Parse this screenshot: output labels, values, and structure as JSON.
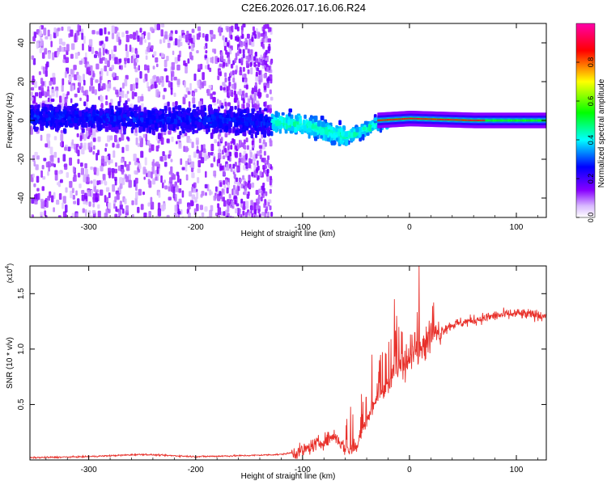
{
  "title": "C2E6.2026.017.16.06.R24",
  "chart_data": [
    {
      "type": "heatmap",
      "name": "spectrogram",
      "xlabel": "Height of straight line (km)",
      "ylabel": "Frequency (Hz)",
      "xlim": [
        -355,
        128
      ],
      "ylim": [
        -50,
        50
      ],
      "xticks": [
        -300,
        -200,
        -100,
        0,
        100
      ],
      "xtick_labels": [
        "-300",
        "-200",
        "-100",
        "0",
        "100"
      ],
      "yticks": [
        -40,
        -20,
        0,
        20,
        40
      ],
      "ytick_labels": [
        "-40",
        "-20",
        "0",
        "20",
        "40"
      ],
      "colorbar": {
        "label": "Normalized spectral amplitude",
        "range": [
          0,
          1
        ],
        "ticks": [
          0.0,
          0.2,
          0.4,
          0.6,
          0.8
        ],
        "tick_labels": [
          "0.0",
          "0.2",
          "0.4",
          "0.6",
          "0.8"
        ],
        "colormap": [
          "#ffffff",
          "#8800ff",
          "#0000ff",
          "#00ffff",
          "#00ff00",
          "#ffff00",
          "#ff0000",
          "#ff00aa"
        ]
      },
      "ridge_center_hz": [
        {
          "x": -355,
          "y": 3
        },
        {
          "x": -250,
          "y": 2
        },
        {
          "x": -150,
          "y": 1
        },
        {
          "x": -100,
          "y": -1
        },
        {
          "x": -75,
          "y": -5
        },
        {
          "x": -60,
          "y": -7
        },
        {
          "x": -45,
          "y": -4
        },
        {
          "x": -30,
          "y": 0
        },
        {
          "x": 0,
          "y": 1
        },
        {
          "x": 60,
          "y": 0
        },
        {
          "x": 128,
          "y": 0
        }
      ]
    },
    {
      "type": "line",
      "name": "snr",
      "xlabel": "Height of straight line (km)",
      "ylabel": "SNR (10 * v/v)",
      "scale_label": "(x10",
      "scale_exponent": "4",
      "xlim": [
        -355,
        128
      ],
      "ylim": [
        0,
        1.75
      ],
      "xticks": [
        -300,
        -200,
        -100,
        0,
        100
      ],
      "xtick_labels": [
        "-300",
        "-200",
        "-100",
        "0",
        "100"
      ],
      "yticks": [
        0.5,
        1.0,
        1.5
      ],
      "ytick_labels": [
        "0.5",
        "1.0",
        "1.5"
      ],
      "color": "#e8302a",
      "series": [
        {
          "name": "SNR",
          "x": [
            -355,
            -300,
            -250,
            -200,
            -150,
            -120,
            -100,
            -90,
            -80,
            -70,
            -60,
            -50,
            -40,
            -30,
            -20,
            -10,
            0,
            10,
            20,
            30,
            40,
            60,
            80,
            100,
            128
          ],
          "y": [
            0.02,
            0.03,
            0.05,
            0.03,
            0.04,
            0.05,
            0.08,
            0.13,
            0.17,
            0.22,
            0.1,
            0.12,
            0.35,
            0.55,
            0.7,
            0.8,
            0.9,
            1.0,
            1.1,
            1.17,
            1.22,
            1.26,
            1.3,
            1.32,
            1.3
          ]
        }
      ],
      "spikes": [
        {
          "x": -14,
          "y": 1.45
        },
        {
          "x": -12,
          "y": 1.3
        },
        {
          "x": -10,
          "y": 1.2
        },
        {
          "x": 5,
          "y": 1.15
        },
        {
          "x": 9,
          "y": 1.75
        },
        {
          "x": -35,
          "y": 0.95
        },
        {
          "x": -28,
          "y": 0.9
        }
      ]
    }
  ]
}
